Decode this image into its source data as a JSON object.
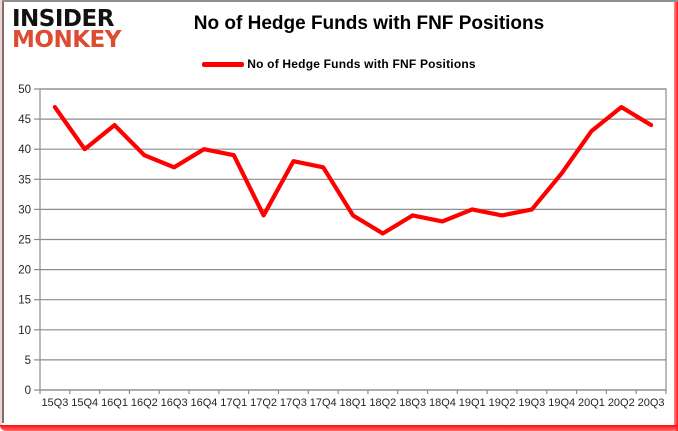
{
  "logo": {
    "line1": "INSIDER",
    "line2": "MONKEY"
  },
  "header": {
    "title": "No of Hedge Funds with FNF Positions"
  },
  "legend": {
    "label": "No of Hedge Funds with FNF Positions"
  },
  "colors": {
    "series": "#ff0000",
    "grid": "#8c8c8c",
    "axis_text": "#262626",
    "logo_black": "#121212",
    "logo_red": "#dd4b32",
    "frame_gray": "#8f8f8f",
    "frame_red": "#ff1616"
  },
  "chart_data": {
    "type": "line",
    "title": "No of Hedge Funds with FNF Positions",
    "categories": [
      "15Q3",
      "15Q4",
      "16Q1",
      "16Q2",
      "16Q3",
      "16Q4",
      "17Q1",
      "17Q2",
      "17Q3",
      "17Q4",
      "18Q1",
      "18Q2",
      "18Q3",
      "18Q4",
      "19Q1",
      "19Q2",
      "19Q3",
      "19Q4",
      "20Q1",
      "20Q2",
      "20Q3"
    ],
    "series": [
      {
        "name": "No of Hedge Funds with FNF Positions",
        "color": "#ff0000",
        "values": [
          47,
          40,
          44,
          39,
          37,
          40,
          39,
          29,
          38,
          37,
          29,
          26,
          29,
          28,
          30,
          29,
          30,
          36,
          43,
          47,
          44
        ]
      }
    ],
    "xlabel": "",
    "ylabel": "",
    "ylim": [
      0,
      50
    ],
    "ytick_step": 5,
    "grid": true,
    "legend_position": "top"
  }
}
